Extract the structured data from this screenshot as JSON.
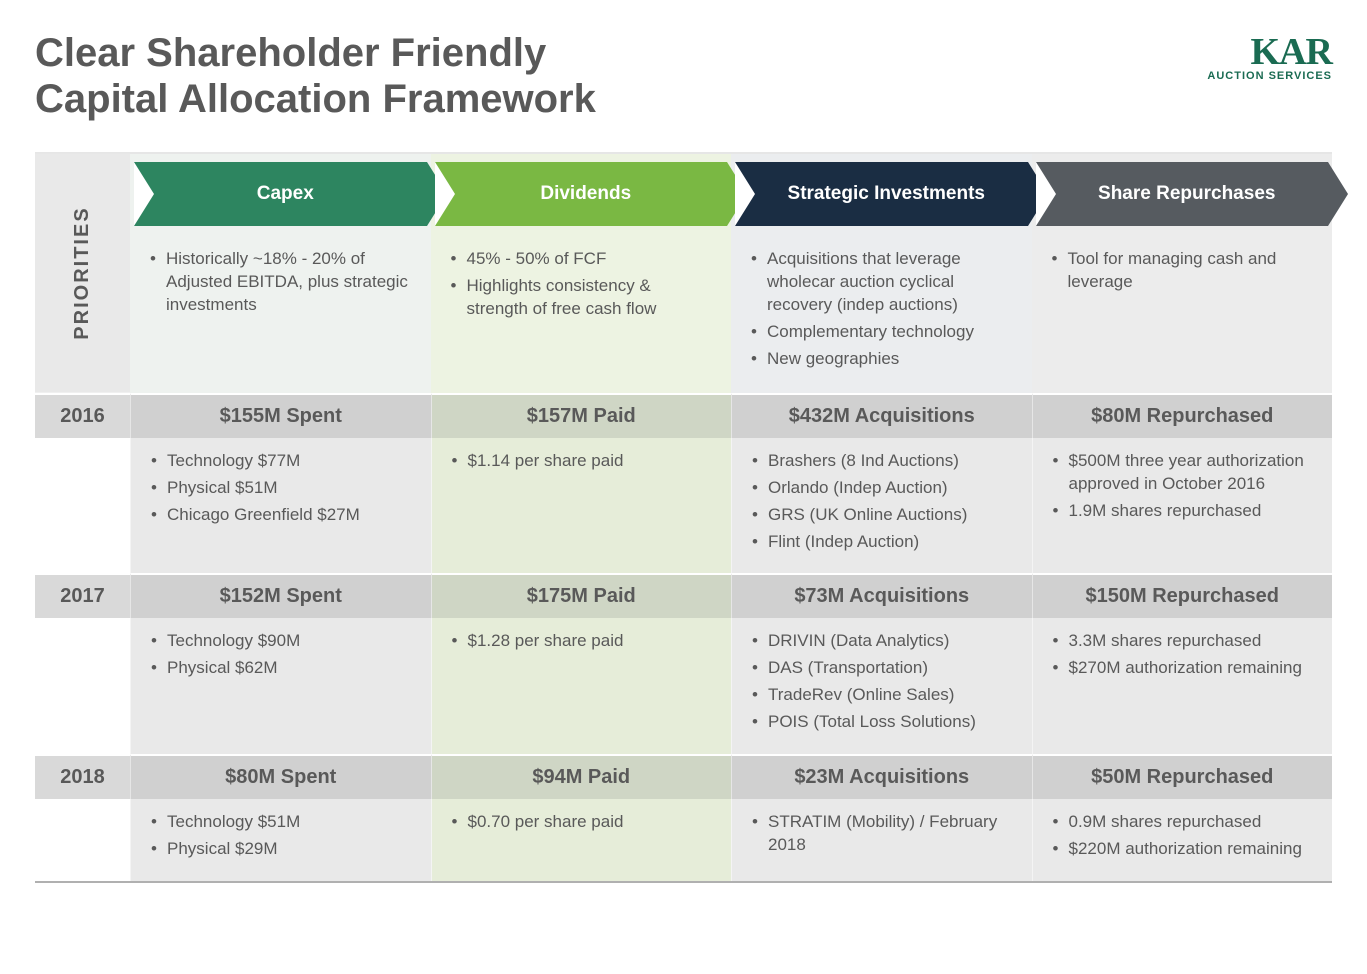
{
  "title": "Clear Shareholder Friendly\nCapital Allocation Framework",
  "logo": {
    "main": "KAR",
    "sub": "AUCTION SERVICES"
  },
  "prioritiesLabel": "PRIORITIES",
  "columns": [
    {
      "key": "capex",
      "header": "Capex",
      "headerBg": "#2d8560",
      "desc": [
        "Historically ~18% - 20% of Adjusted EBITDA, plus strategic investments"
      ]
    },
    {
      "key": "dividends",
      "header": "Dividends",
      "headerBg": "#7ab843",
      "desc": [
        "45% - 50% of FCF",
        "Highlights consistency & strength of free cash flow"
      ]
    },
    {
      "key": "strategic",
      "header": "Strategic Investments",
      "headerBg": "#1a2d43",
      "desc": [
        "Acquisitions that leverage wholecar auction cyclical recovery (indep auctions)",
        "Complementary technology",
        "New geographies"
      ]
    },
    {
      "key": "share",
      "header": "Share Repurchases",
      "headerBg": "#565b60",
      "desc": [
        "Tool for managing cash and leverage"
      ]
    }
  ],
  "years": [
    {
      "year": "2016",
      "cells": [
        {
          "summary": "$155M Spent",
          "details": [
            "Technology $77M",
            "Physical $51M",
            "Chicago Greenfield $27M"
          ]
        },
        {
          "summary": "$157M Paid",
          "details": [
            "$1.14 per share paid"
          ]
        },
        {
          "summary": "$432M Acquisitions",
          "details": [
            "Brashers (8 Ind Auctions)",
            "Orlando (Indep Auction)",
            "GRS (UK Online Auctions)",
            "Flint (Indep Auction)"
          ]
        },
        {
          "summary": "$80M Repurchased",
          "details": [
            "$500M three year authorization approved in October 2016",
            "1.9M shares repurchased"
          ]
        }
      ]
    },
    {
      "year": "2017",
      "cells": [
        {
          "summary": "$152M Spent",
          "details": [
            "Technology $90M",
            "Physical $62M"
          ]
        },
        {
          "summary": "$175M Paid",
          "details": [
            "$1.28 per share paid"
          ]
        },
        {
          "summary": "$73M Acquisitions",
          "details": [
            "DRIVIN (Data Analytics)",
            "DAS (Transportation)",
            "TradeRev (Online Sales)",
            "POIS (Total Loss Solutions)"
          ]
        },
        {
          "summary": "$150M Repurchased",
          "details": [
            "3.3M shares repurchased",
            "$270M authorization remaining"
          ]
        }
      ]
    },
    {
      "year": "2018",
      "cells": [
        {
          "summary": "$80M Spent",
          "details": [
            "Technology $51M",
            "Physical $29M"
          ]
        },
        {
          "summary": "$94M Paid",
          "details": [
            "$0.70 per share paid"
          ]
        },
        {
          "summary": "$23M Acquisitions",
          "details": [
            "STRATIM (Mobility) / February 2018"
          ]
        },
        {
          "summary": "$50M Repurchased",
          "details": [
            "0.9M shares repurchased",
            "$220M authorization remaining"
          ]
        }
      ]
    }
  ]
}
